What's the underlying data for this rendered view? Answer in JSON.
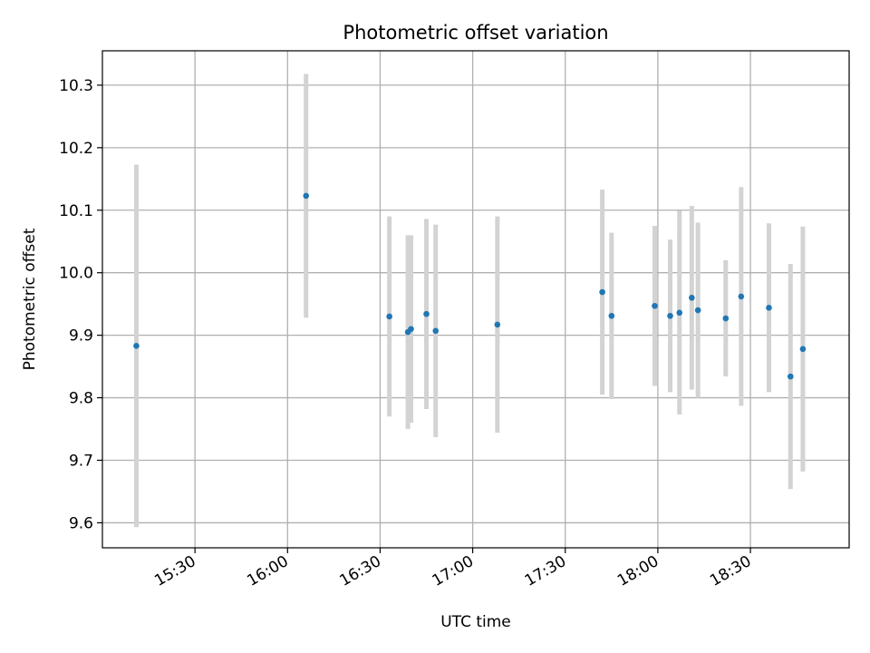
{
  "chart_data": {
    "type": "scatter",
    "title": "Photometric offset variation",
    "xlabel": "UTC time",
    "ylabel": "Photometric offset",
    "x_axis": {
      "ticks": [
        "15:30",
        "16:00",
        "16:30",
        "17:00",
        "17:30",
        "18:00",
        "18:30"
      ],
      "range": [
        "15:00",
        "19:02"
      ]
    },
    "y_axis": {
      "ticks": [
        "9.6",
        "9.7",
        "9.8",
        "9.9",
        "10.0",
        "10.1",
        "10.2",
        "10.3"
      ],
      "range": [
        9.56,
        10.355
      ]
    },
    "grid": true,
    "colors": {
      "point": "#1f77b4",
      "errorbar": "#d3d3d3",
      "grid": "#b0b0b0"
    },
    "series": [
      {
        "points": [
          {
            "t": "15:11",
            "y": 9.883,
            "err": 0.29
          },
          {
            "t": "16:06",
            "y": 10.123,
            "err": 0.195
          },
          {
            "t": "16:33",
            "y": 9.93,
            "err": 0.16
          },
          {
            "t": "16:39",
            "y": 9.905,
            "err": 0.155
          },
          {
            "t": "16:40",
            "y": 9.91,
            "err": 0.15
          },
          {
            "t": "16:45",
            "y": 9.934,
            "err": 0.152
          },
          {
            "t": "16:48",
            "y": 9.907,
            "err": 0.17
          },
          {
            "t": "17:08",
            "y": 9.917,
            "err": 0.173
          },
          {
            "t": "17:42",
            "y": 9.969,
            "err": 0.164
          },
          {
            "t": "17:45",
            "y": 9.931,
            "err": 0.133
          },
          {
            "t": "17:59",
            "y": 9.947,
            "err": 0.128
          },
          {
            "t": "18:04",
            "y": 9.931,
            "err": 0.122
          },
          {
            "t": "18:07",
            "y": 9.936,
            "err": 0.163
          },
          {
            "t": "18:11",
            "y": 9.96,
            "err": 0.147
          },
          {
            "t": "18:13",
            "y": 9.94,
            "err": 0.14
          },
          {
            "t": "18:22",
            "y": 9.927,
            "err": 0.093
          },
          {
            "t": "18:27",
            "y": 9.962,
            "err": 0.175
          },
          {
            "t": "18:36",
            "y": 9.944,
            "err": 0.135
          },
          {
            "t": "18:43",
            "y": 9.834,
            "err": 0.18
          },
          {
            "t": "18:47",
            "y": 9.878,
            "err": 0.196
          }
        ]
      }
    ]
  }
}
